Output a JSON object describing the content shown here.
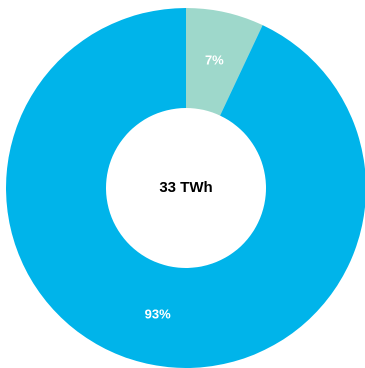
{
  "chart_data": {
    "type": "donut",
    "values": [
      7,
      93
    ],
    "value_labels": [
      "7%",
      "93%"
    ],
    "colors": [
      "#9ed8cb",
      "#00b4ea"
    ],
    "center_label": "33 TWh"
  }
}
